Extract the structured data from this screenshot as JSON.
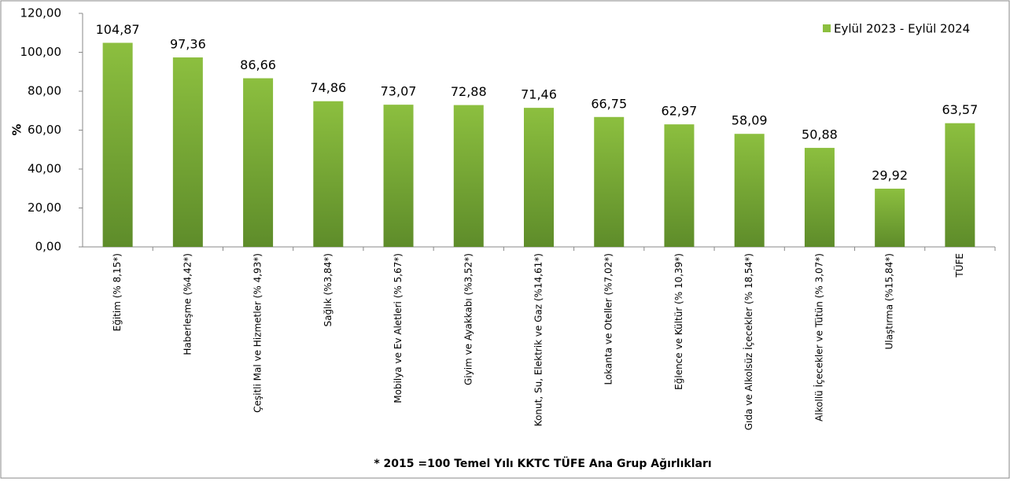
{
  "chart_data": {
    "type": "bar",
    "ylabel": "%",
    "footnote": "*  2015 =100 Temel Yılı KKTC TÜFE Ana Grup Ağırlıkları",
    "categories": [
      "Eğitim (% 8,15*)",
      "Haberleşme (%4,42*)",
      "Çeşitli Mal ve Hizmetler (% 4,93*)",
      "Sağlık (%3,84*)",
      "Mobilya ve Ev Aletleri (% 5,67*)",
      "Giyim ve Ayakkabı (%3,52*)",
      "Konut, Su, Elektrik ve Gaz (%14,61*)",
      "Lokanta ve Oteller (%7,02*)",
      "Eğlence ve Kültür (% 10,39*)",
      "Gıda ve Alkolsüz İçecekler (% 18,54*)",
      "Alkollü İçecekler ve Tütün (% 3,07*)",
      "Ulaştırma (%15,84*)",
      "TÜFE"
    ],
    "series": [
      {
        "name": "Eylül 2023 - Eylül 2024",
        "color": "#8cbf3f",
        "values": [
          104.87,
          97.36,
          86.66,
          74.86,
          73.07,
          72.88,
          71.46,
          66.75,
          62.97,
          58.09,
          50.88,
          29.92,
          63.57
        ],
        "value_labels": [
          "104,87",
          "97,36",
          "86,66",
          "74,86",
          "73,07",
          "72,88",
          "71,46",
          "66,75",
          "62,97",
          "58,09",
          "50,88",
          "29,92",
          "63,57"
        ]
      }
    ],
    "ylim": [
      0,
      120
    ],
    "yticks": [
      {
        "value": 0,
        "label": "0,00"
      },
      {
        "value": 20,
        "label": "20,00"
      },
      {
        "value": 40,
        "label": "40,00"
      },
      {
        "value": 60,
        "label": "60,00"
      },
      {
        "value": 80,
        "label": "80,00"
      },
      {
        "value": 100,
        "label": "100,00"
      },
      {
        "value": 120,
        "label": "120,00"
      }
    ],
    "legend": "top-right"
  }
}
